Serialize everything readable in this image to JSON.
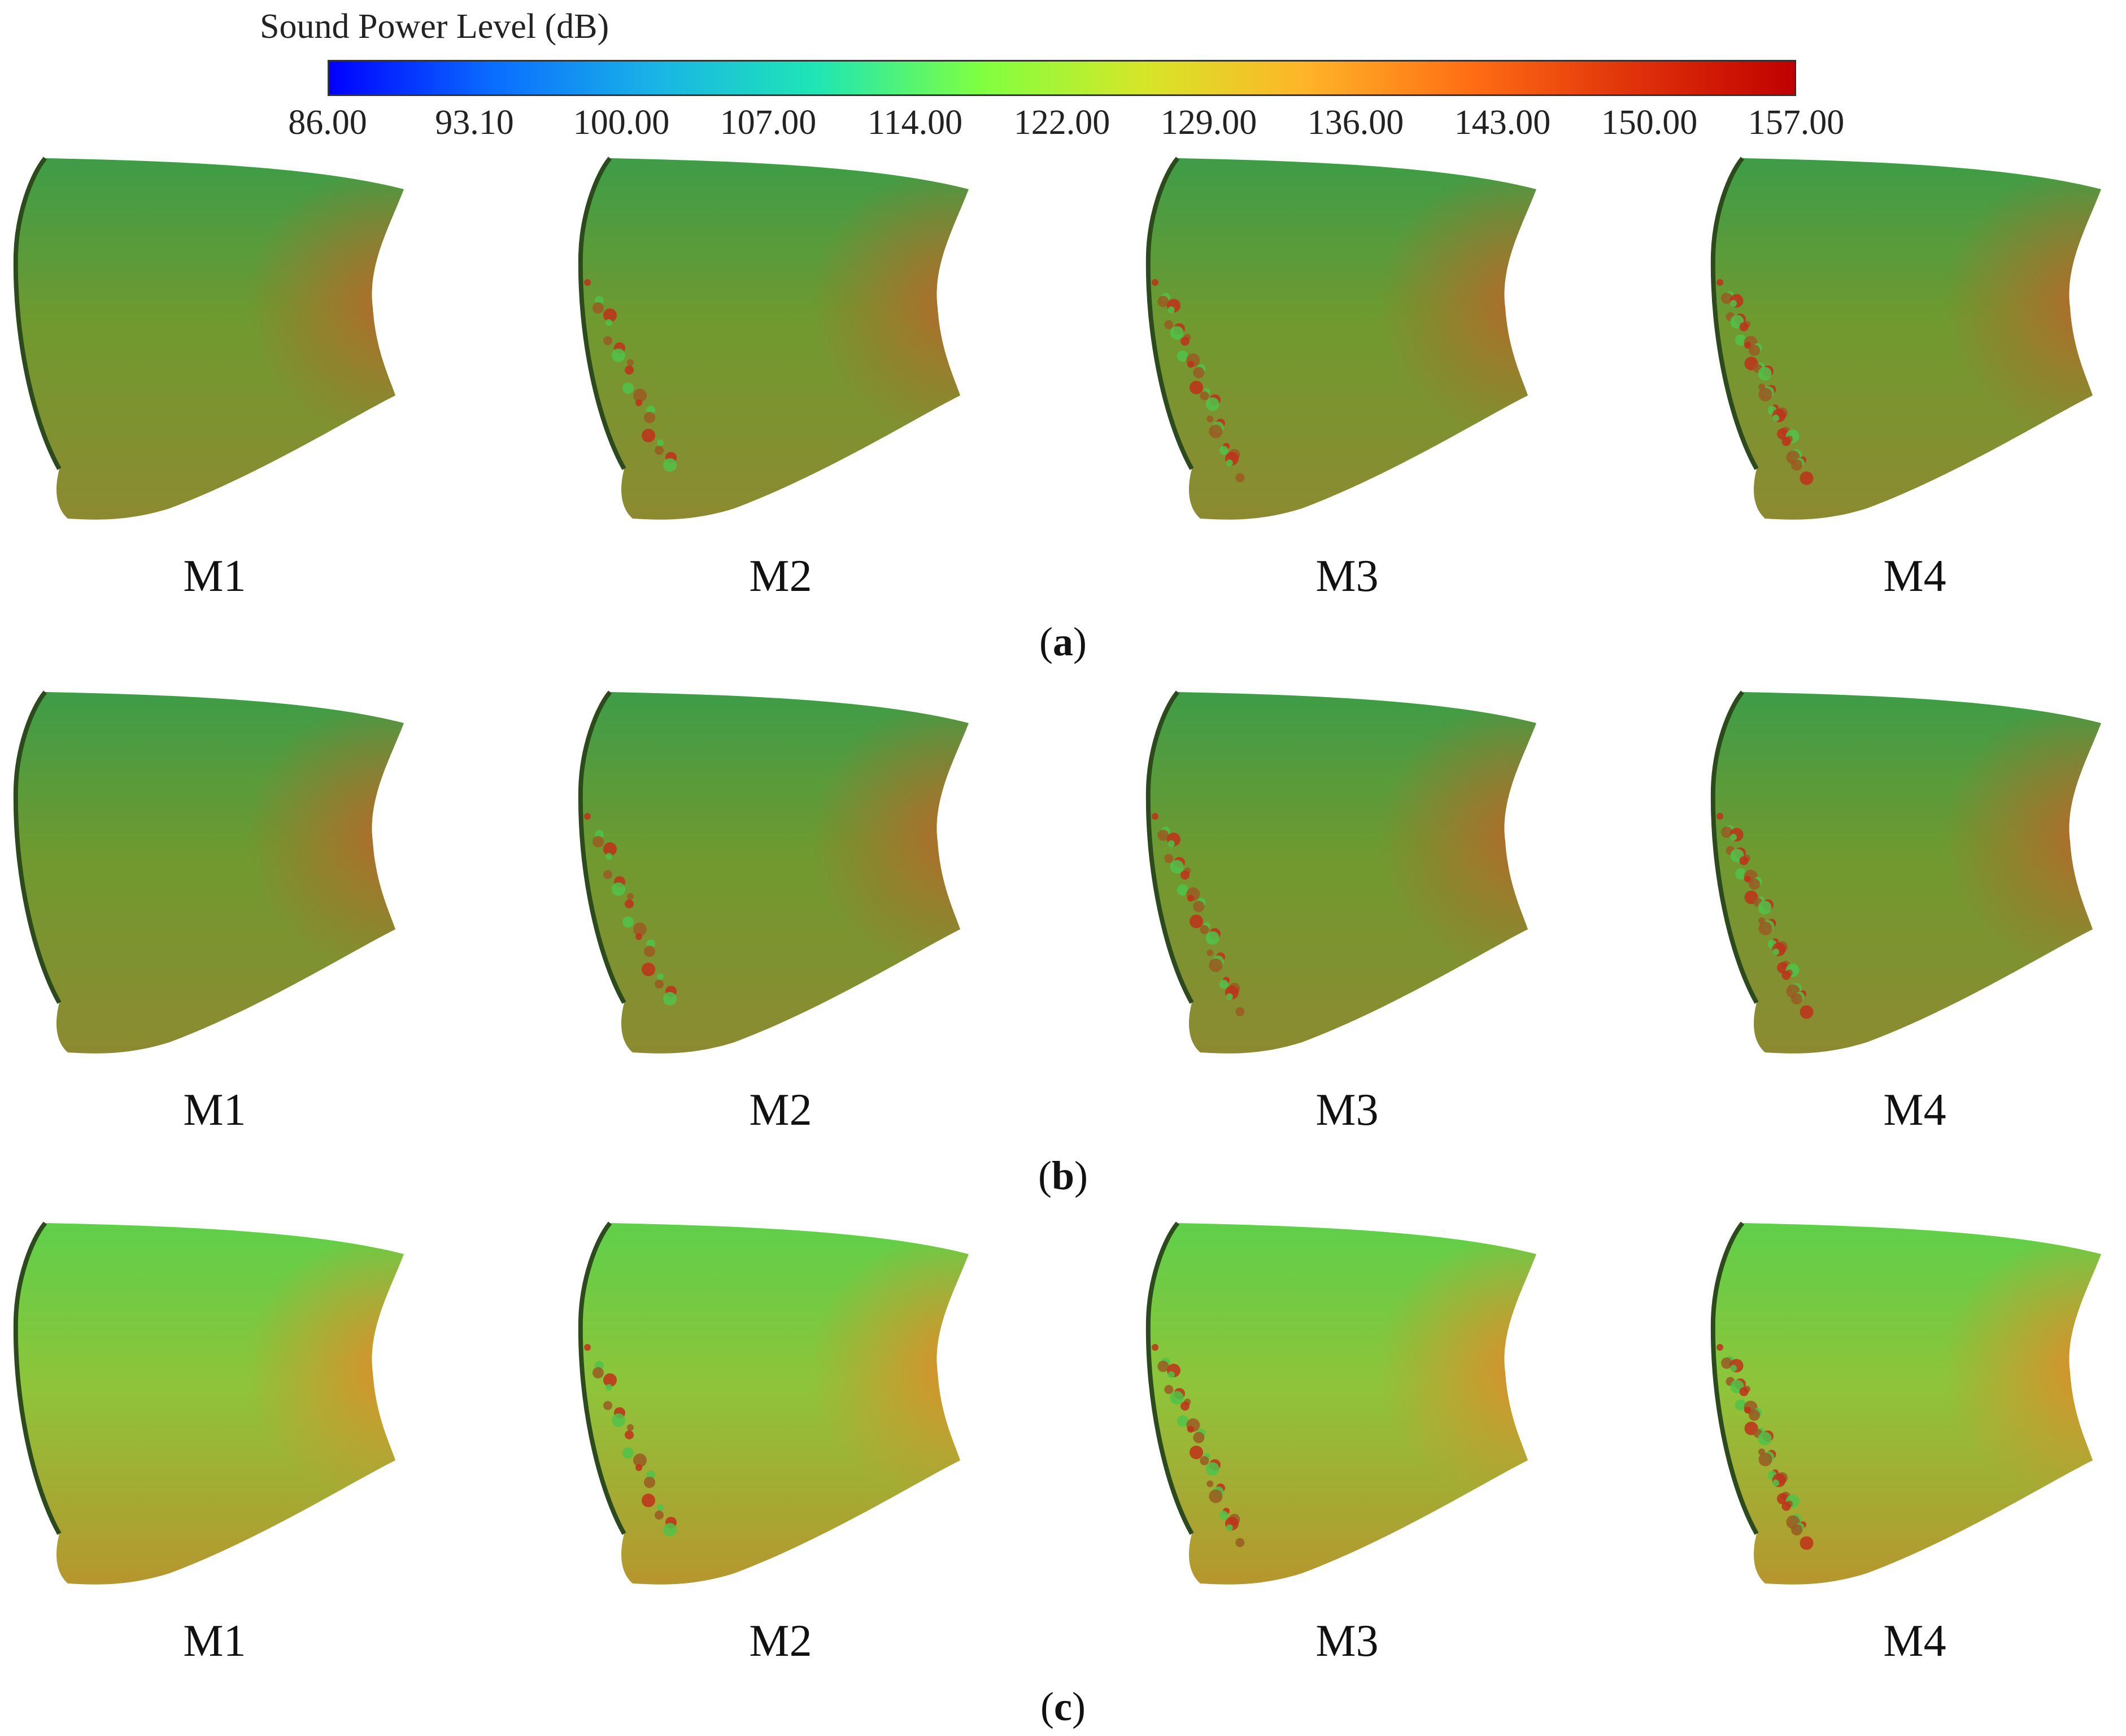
{
  "colorbar": {
    "title": "Sound Power Level  (dB)",
    "min": 86.0,
    "max": 157.0,
    "ticks": [
      "86.00",
      "93.10",
      "100.00",
      "107.00",
      "114.00",
      "122.00",
      "129.00",
      "136.00",
      "143.00",
      "150.00",
      "157.00"
    ],
    "colors": [
      "#0000ff",
      "#0a6cff",
      "#19b4e6",
      "#1fe6b4",
      "#80ff40",
      "#d6e628",
      "#ffb428",
      "#ff6e14",
      "#e0320a",
      "#c00000"
    ]
  },
  "rows": [
    {
      "caption_letter": "a",
      "caption_open": "(",
      "caption_close": ")",
      "theme": "dark",
      "panels": [
        {
          "label": "M1"
        },
        {
          "label": "M2"
        },
        {
          "label": "M3"
        },
        {
          "label": "M4"
        }
      ]
    },
    {
      "caption_letter": "b",
      "caption_open": "(",
      "caption_close": ")",
      "theme": "dark",
      "panels": [
        {
          "label": "M1"
        },
        {
          "label": "M2"
        },
        {
          "label": "M3"
        },
        {
          "label": "M4"
        }
      ]
    },
    {
      "caption_letter": "c",
      "caption_open": "(",
      "caption_close": ")",
      "theme": "bright",
      "panels": [
        {
          "label": "M1"
        },
        {
          "label": "M2"
        },
        {
          "label": "M3"
        },
        {
          "label": "M4"
        }
      ]
    }
  ]
}
